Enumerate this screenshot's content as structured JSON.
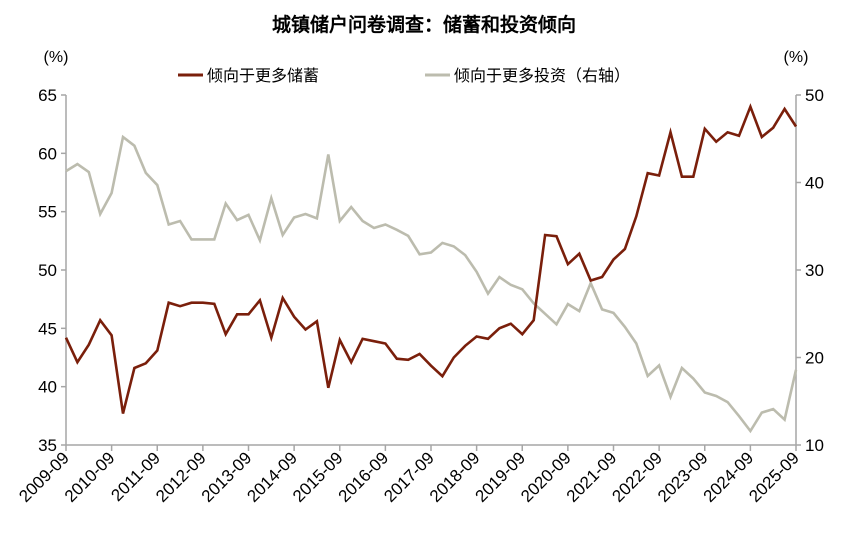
{
  "chart_data": {
    "type": "line",
    "title": "城镇储户问卷调查：储蓄和投资倾向",
    "left_unit": "(%)",
    "right_unit": "(%)",
    "x_tick_labels": [
      "2009-09",
      "2010-09",
      "2011-09",
      "2012-09",
      "2013-09",
      "2014-09",
      "2015-09",
      "2016-09",
      "2017-09",
      "2018-09",
      "2019-09",
      "2020-09",
      "2021-09",
      "2022-09",
      "2023-09",
      "2024-09",
      "2025-09"
    ],
    "x_frequency": "quarterly",
    "x_start": "2009-09",
    "x_end": "2025-09",
    "ylim_left": [
      35,
      65
    ],
    "yticks_left": [
      35,
      40,
      45,
      50,
      55,
      60,
      65
    ],
    "ylim_right": [
      10,
      50
    ],
    "yticks_right": [
      10,
      20,
      30,
      40,
      50
    ],
    "grid": false,
    "legend_position": "top",
    "series": [
      {
        "name": "倾向于更多储蓄",
        "axis": "left",
        "color": "#7a1f0b",
        "values": [
          44.2,
          42.1,
          43.6,
          45.7,
          44.4,
          37.7,
          41.6,
          42.0,
          43.1,
          47.2,
          46.9,
          47.2,
          47.2,
          47.1,
          44.5,
          46.2,
          46.2,
          47.4,
          44.2,
          47.6,
          46.0,
          44.9,
          45.6,
          39.9,
          44.0,
          42.1,
          44.1,
          43.9,
          43.7,
          42.4,
          42.3,
          42.8,
          41.8,
          40.9,
          42.5,
          43.5,
          44.3,
          44.1,
          45.0,
          45.4,
          44.5,
          45.7,
          53.0,
          52.9,
          50.5,
          51.4,
          49.1,
          49.4,
          50.9,
          51.8,
          54.6,
          58.3,
          58.1,
          61.8,
          58.0,
          58.0,
          62.1,
          61.0,
          61.8,
          61.5,
          64.0,
          61.4,
          62.2,
          63.8,
          62.3
        ]
      },
      {
        "name": "倾向于更多投资（右轴）",
        "axis": "right",
        "color": "#bcbcae",
        "values": [
          41.3,
          42.1,
          41.2,
          36.4,
          38.8,
          45.2,
          44.2,
          41.1,
          39.7,
          35.2,
          35.6,
          33.5,
          33.5,
          33.5,
          37.6,
          35.7,
          36.3,
          33.4,
          38.2,
          34.0,
          36.0,
          36.4,
          35.9,
          43.2,
          35.6,
          37.2,
          35.6,
          34.8,
          35.2,
          34.6,
          33.9,
          31.8,
          32.0,
          33.1,
          32.7,
          31.7,
          29.8,
          27.3,
          29.2,
          28.3,
          27.8,
          26.2,
          25.0,
          23.8,
          26.1,
          25.3,
          28.5,
          25.5,
          25.1,
          23.5,
          21.6,
          17.9,
          19.1,
          15.5,
          18.8,
          17.6,
          16.0,
          15.6,
          14.9,
          13.3,
          11.6,
          13.7,
          14.1,
          12.9,
          18.6
        ]
      }
    ]
  }
}
